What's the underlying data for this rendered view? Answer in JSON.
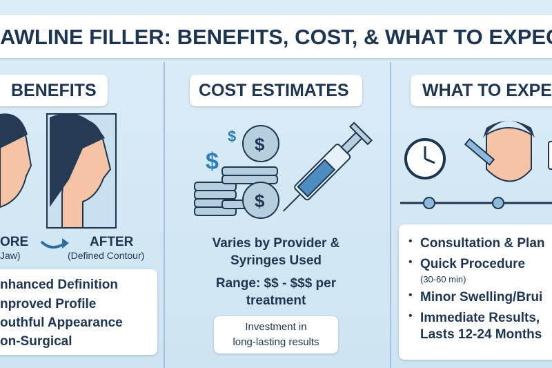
{
  "header": {
    "title": "AWLINE FILLER: BENEFITS, COST, & WHAT TO EXPEC"
  },
  "benefits": {
    "heading": "BENEFITS",
    "before_label": "ORE",
    "before_sub": "Jaw)",
    "after_label": "AFTER",
    "after_sub": "(Defined Contour)",
    "items": [
      "nhanced Definition",
      "nproved Profile",
      "outhful Appearance",
      "on-Surgical"
    ]
  },
  "cost": {
    "heading": "COST ESTIMATES",
    "varies": [
      "Varies by Provider &",
      "Syringes Used"
    ],
    "range": [
      "Range: $$ - $$$ per",
      "treatment"
    ],
    "note": [
      "Investment in",
      "long-lasting results"
    ]
  },
  "expect": {
    "heading": "WHAT TO EXPE",
    "items": [
      "Consultation & Plan",
      "Quick Procedure",
      "(30-60 min)",
      "Minor Swelling/Brui",
      "Immediate Results,",
      "Lasts 12-24 Months"
    ]
  }
}
